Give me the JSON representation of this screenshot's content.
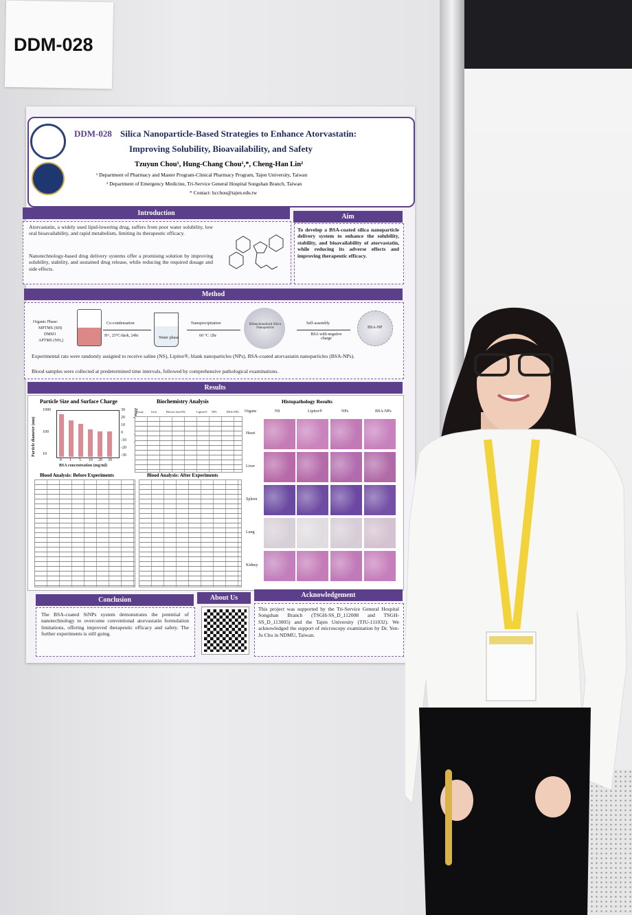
{
  "sign": "DDM-028",
  "poster": {
    "code": "DDM-028",
    "title_line1": "Silica Nanoparticle-Based Strategies to Enhance Atorvastatin:",
    "title_line2": "Improving Solubility, Bioavailability, and Safety",
    "authors": "Tzuyun Chou¹, Hung-Chang Chou¹,*, Cheng-Han Lin²",
    "affiliations": [
      "¹ Department of Pharmacy and Master Program-Clinical Pharmacy Program, Tajen University, Taiwan",
      "² Department of Emergency Medicine, Tri-Service General Hospital Songshan Branch, Taiwan"
    ],
    "contact": "* Contact: hcchou@tajen.edu.tw",
    "introduction": {
      "heading": "Introduction",
      "bullets": [
        "Atorvastatin, a widely used lipid-lowering drug, suffers from poor water solubility, low oral bioavailability, and rapid metabolism, limiting its therapeutic efficacy.",
        "Nanotechnology-based drug delivery systems offer a promising solution by improving solubility, stability, and sustained drug release, while reducing the required dosage and side effects."
      ]
    },
    "aim": {
      "heading": "Aim",
      "text": "To develop a BSA-coated silica nanoparticle delivery system to enhance the solubility, stability, and bioavailability of atorvastatin, while reducing its adverse effects and improving therapeutic efficacy."
    },
    "method": {
      "heading": "Method",
      "organic_phase": [
        "Organic Phase:",
        "MPTMS (SH)",
        "DMSO",
        "APTMS (NH₂)"
      ],
      "steps": [
        "Co-condensation",
        "H+, 25°C/dark, 24hr",
        "Water phase",
        "Nanoprecipitation",
        "60 °C /2hr",
        "Bifunctionalized Silica Nanoparticle",
        "Self-assembly",
        "BSA with negative charge",
        "BSA-NP"
      ],
      "bullets": [
        "Experimental rats were randomly assigned to receive saline (NS), Lipitor®, blank nanoparticles (NPs), BSA-coated atorvastatin nanoparticles (BSA-NPs).",
        "Blood samples were collected at predetermined time intervals, followed by comprehensive pathological examinations."
      ]
    },
    "results": {
      "heading": "Results",
      "particle_title": "Particle Size and Surface Charge",
      "y_label": "Particle diameter (nm)",
      "y2_label": "Zeta potential (mV)",
      "x_label": "BSA concentration (mg/ml)",
      "y_ticks": [
        "1000",
        "100",
        "10"
      ],
      "y2_ticks": [
        "30",
        "20",
        "10",
        "0",
        "-10",
        "-20",
        "-30"
      ],
      "x_ticks": [
        "0",
        "1",
        "5",
        "10",
        "20",
        "30"
      ],
      "biochem_title": "Biochemistry Analysis",
      "biochem_header": [
        "Assay",
        "Unit",
        "Before dose",
        "NS",
        "Lipitor®",
        "NPs",
        "BSA-NPs"
      ],
      "blood_before_title": "Blood Analysis: Before Experiments",
      "blood_after_title": "Blood Analysis: After Experiments",
      "histo_title": "Histopathology Results",
      "histo_header": [
        "Organs",
        "NS",
        "Lipitor®",
        "NPs",
        "BSA-NPs"
      ],
      "organs": [
        "Heart",
        "Liver",
        "Spleen",
        "Lung",
        "Kidney"
      ]
    },
    "conclusion": {
      "heading": "Conclusion",
      "text": "The BSA-coated SiNPs system demonstrates the potential of nanotechnology to overcome conventional atorvastatin formulation limitations, offering improved therapeutic efficacy and safety. The further experiments is still going."
    },
    "about": {
      "heading": "About Us"
    },
    "acknowledgement": {
      "heading": "Acknowledgement",
      "text": "This project was supported by the Tri-Service General Hospital Songshan Branch (TSGH-SS_D_112008 and TSGH-SS_D_113005) and the Tajen University (TJU-111032). We acknowledged the support of microscopy examination by Dr. Yen-Ju Chu in NDMU, Taiwan."
    }
  }
}
